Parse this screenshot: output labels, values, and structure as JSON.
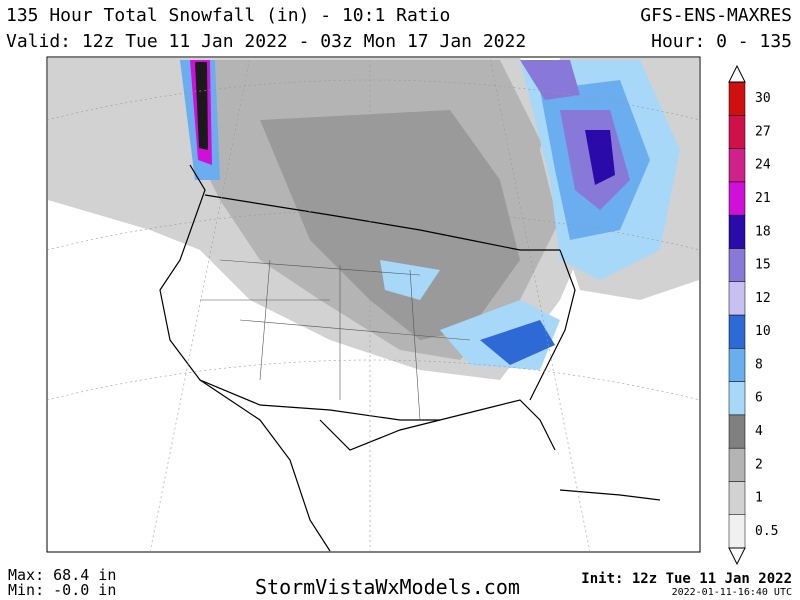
{
  "header": {
    "title": "135 Hour Total Snowfall (in) - 10:1 Ratio",
    "model": "GFS-ENS-MAXRES",
    "valid": "Valid: 12z Tue 11 Jan 2022 - 03z Mon 17 Jan 2022",
    "hour": "Hour: 0 - 135"
  },
  "colorbar": {
    "labels": [
      0.5,
      1,
      2,
      4,
      6,
      8,
      10,
      12,
      15,
      18,
      21,
      24,
      27,
      30
    ],
    "colors": [
      "#f0f0f0",
      "#d2d2d2",
      "#b4b4b4",
      "#808080",
      "#a8d8f8",
      "#6aaef0",
      "#2d6ad6",
      "#c8c0f0",
      "#8878d8",
      "#2a0aa8",
      "#d010d8",
      "#d0208c",
      "#d0104a",
      "#d01010"
    ]
  },
  "footer": {
    "max": "Max: 68.4 in",
    "min": "Min: -0.0 in",
    "site": "StormVistaWxModels.com",
    "init": "Init: 12z Tue 11 Jan 2022",
    "timestamp": "2022-01-11-16:40 UTC"
  }
}
